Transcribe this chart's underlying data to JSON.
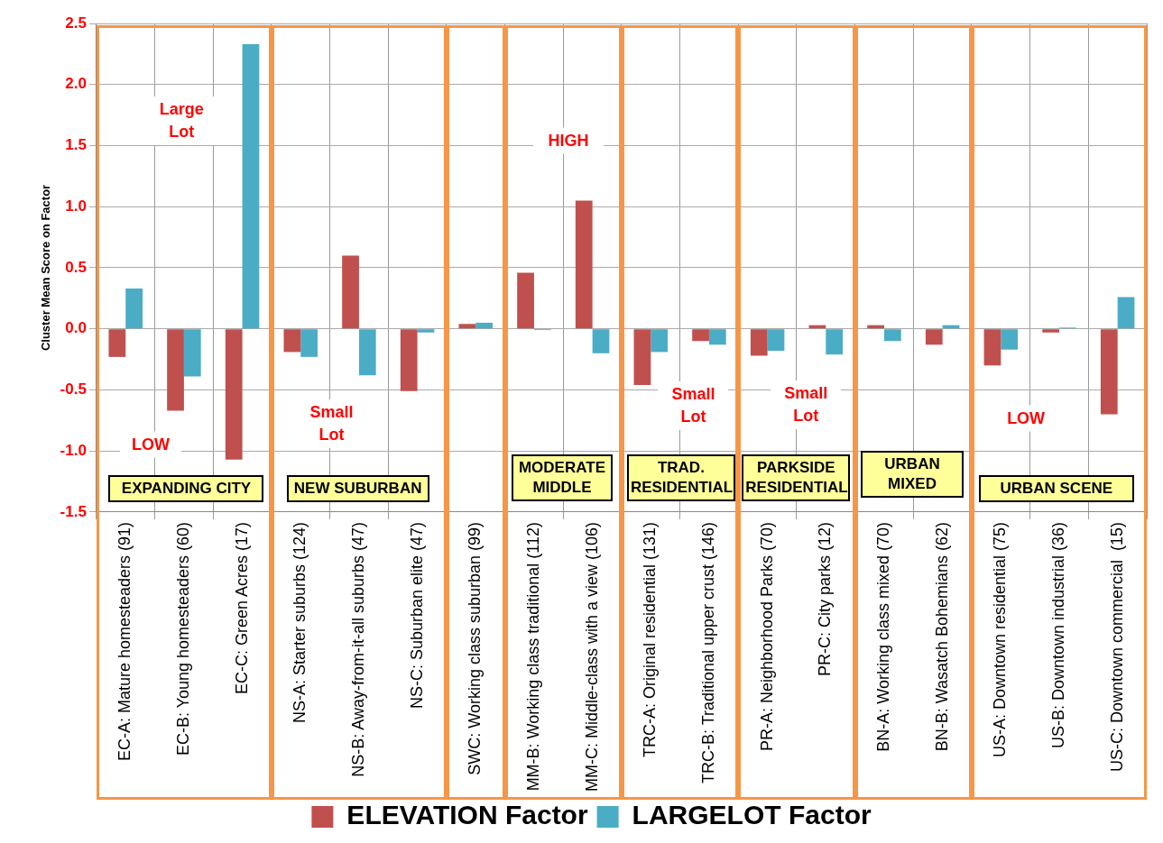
{
  "chart_data": {
    "type": "bar",
    "ylabel": "Cluster Mean Score on Factor",
    "categories": [
      "EC-A: Mature homesteaders (91)",
      "EC-B: Young homesteaders (60)",
      "EC-C: Green Acres (17)",
      "NS-A: Starter suburbs (124)",
      "NS-B: Away-from-it-all suburbs (47)",
      "NS-C: Suburban elite (47)",
      "SWC: Working class suburban (99)",
      "MM-B: Working class traditional (112)",
      "MM-C: Middle-class with a view (106)",
      "TRC-A: Original residential (131)",
      "TRC-B: Traditional upper crust (146)",
      "PR-A: Neighborhood Parks (70)",
      "PR-C: City parks (12)",
      "BN-A: Working class mixed (70)",
      "BN-B: Wasatch Bohemians (62)",
      "US-A: Downtown residential (75)",
      "US-B: Downtown industrial (36)",
      "US-C: Downtown commercial  (15)"
    ],
    "series": [
      {
        "name": "ELEVATION Factor",
        "color": "#c0504d",
        "values": [
          -0.23,
          -0.67,
          -1.07,
          -0.19,
          0.6,
          -0.51,
          0.04,
          0.46,
          1.05,
          -0.46,
          -0.1,
          -0.22,
          0.03,
          0.03,
          -0.13,
          -0.3,
          -0.03,
          -0.7
        ]
      },
      {
        "name": "LARGELOT Factor",
        "color": "#4bacc6",
        "values": [
          0.33,
          -0.39,
          2.33,
          -0.23,
          -0.38,
          -0.03,
          0.05,
          -0.01,
          -0.2,
          -0.19,
          -0.13,
          -0.18,
          -0.21,
          -0.1,
          0.03,
          -0.17,
          0.01,
          0.26
        ]
      }
    ],
    "ylim": [
      -1.5,
      2.5
    ],
    "yticks": [
      {
        "value": -1.5,
        "label": "-1.5"
      },
      {
        "value": -1,
        "label": "-1.0"
      },
      -0.5,
      {
        "value": 0,
        "label": "0.0"
      },
      0.5,
      {
        "value": 1,
        "label": "1.0"
      },
      1.5,
      {
        "value": 2,
        "label": "2.0"
      },
      2.5
    ],
    "grid": true,
    "legend": "bottom",
    "annotations": [
      "Large Lot",
      "LOW",
      "Small Lot",
      "HIGH",
      "Small Lot",
      "Small Lot",
      "LOW",
      "EXPANDING CITY",
      "NEW SUBURBAN",
      "MODERATE MIDDLE",
      "TRAD. RESIDENTIAL",
      "PARKSIDE RESIDENTIAL",
      "URBAN MIXED",
      "URBAN SCENE"
    ]
  }
}
